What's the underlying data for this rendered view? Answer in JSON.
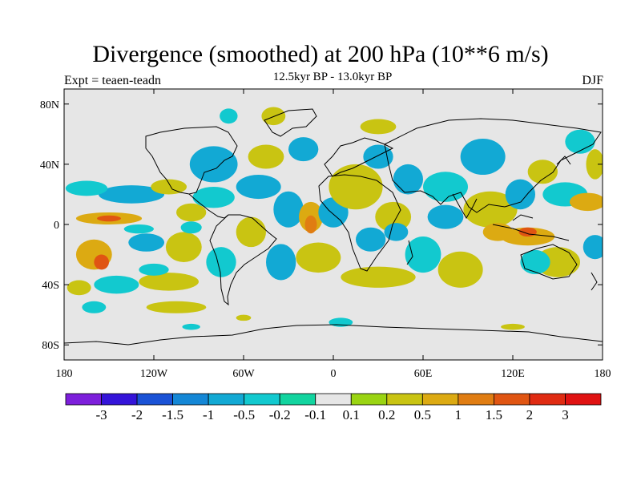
{
  "title": "Divergence (smoothed) at 200 hPa (10**6 m/s)",
  "left_label": "Expt = teaen-teadn",
  "center_label": "12.5kyr BP - 13.0kyr BP",
  "right_label": "DJF",
  "chart_data": {
    "type": "heatmap",
    "title": "Divergence (smoothed) at 200 hPa (10**6 m/s)",
    "subtitle": "12.5kyr BP - 13.0kyr BP",
    "season": "DJF",
    "experiment": "teaen-teadn",
    "xlim": [
      -180,
      180
    ],
    "ylim": [
      -90,
      90
    ],
    "x_ticks": [
      {
        "value": -180,
        "label": "180"
      },
      {
        "value": -120,
        "label": "120W"
      },
      {
        "value": -60,
        "label": "60W"
      },
      {
        "value": 0,
        "label": "0"
      },
      {
        "value": 60,
        "label": "60E"
      },
      {
        "value": 120,
        "label": "120E"
      },
      {
        "value": 180,
        "label": "180"
      }
    ],
    "y_ticks": [
      {
        "value": 80,
        "label": "80N"
      },
      {
        "value": 40,
        "label": "40N"
      },
      {
        "value": 0,
        "label": "0"
      },
      {
        "value": -40,
        "label": "40S"
      },
      {
        "value": -80,
        "label": "80S"
      }
    ],
    "colorbar": {
      "labels": [
        "-3",
        "-2",
        "-1.5",
        "-1",
        "-0.5",
        "-0.2",
        "-0.1",
        "0.1",
        "0.2",
        "0.5",
        "1",
        "1.5",
        "2",
        "3"
      ],
      "colors": [
        "#7d1fdb",
        "#3414d9",
        "#1a52d6",
        "#1487d6",
        "#12a9d4",
        "#12c9cf",
        "#12d49f",
        "#e6e6e6",
        "#9ad412",
        "#c9c412",
        "#dcaa12",
        "#e07d12",
        "#e05512",
        "#e02b12",
        "#e01212"
      ]
    },
    "blobs": [
      {
        "lon": -150,
        "lat": 4,
        "rlon": 22,
        "rlat": 4,
        "cls": 10
      },
      {
        "lon": -150,
        "lat": 4,
        "rlon": 8,
        "rlat": 2,
        "cls": 12
      },
      {
        "lon": -135,
        "lat": 20,
        "rlon": 22,
        "rlat": 6,
        "cls": 4
      },
      {
        "lon": -165,
        "lat": 24,
        "rlon": 14,
        "rlat": 5,
        "cls": 5
      },
      {
        "lon": -110,
        "lat": 25,
        "rlon": 12,
        "rlat": 5,
        "cls": 9
      },
      {
        "lon": -130,
        "lat": -3,
        "rlon": 10,
        "rlat": 3,
        "cls": 5
      },
      {
        "lon": -125,
        "lat": -12,
        "rlon": 12,
        "rlat": 6,
        "cls": 4
      },
      {
        "lon": -160,
        "lat": -20,
        "rlon": 12,
        "rlat": 10,
        "cls": 10
      },
      {
        "lon": -155,
        "lat": -25,
        "rlon": 5,
        "rlat": 5,
        "cls": 12
      },
      {
        "lon": -170,
        "lat": -42,
        "rlon": 8,
        "rlat": 5,
        "cls": 9
      },
      {
        "lon": -145,
        "lat": -40,
        "rlon": 15,
        "rlat": 6,
        "cls": 5
      },
      {
        "lon": -110,
        "lat": -38,
        "rlon": 20,
        "rlat": 6,
        "cls": 9
      },
      {
        "lon": -120,
        "lat": -30,
        "rlon": 10,
        "rlat": 4,
        "cls": 5
      },
      {
        "lon": -100,
        "lat": -15,
        "rlon": 12,
        "rlat": 10,
        "cls": 9
      },
      {
        "lon": -95,
        "lat": 8,
        "rlon": 10,
        "rlat": 6,
        "cls": 9
      },
      {
        "lon": -95,
        "lat": -2,
        "rlon": 7,
        "rlat": 4,
        "cls": 5
      },
      {
        "lon": -80,
        "lat": 40,
        "rlon": 16,
        "rlat": 12,
        "cls": 4
      },
      {
        "lon": -80,
        "lat": 18,
        "rlon": 14,
        "rlat": 7,
        "cls": 5
      },
      {
        "lon": -50,
        "lat": 25,
        "rlon": 15,
        "rlat": 8,
        "cls": 4
      },
      {
        "lon": -45,
        "lat": 45,
        "rlon": 12,
        "rlat": 8,
        "cls": 9
      },
      {
        "lon": -20,
        "lat": 50,
        "rlon": 10,
        "rlat": 8,
        "cls": 4
      },
      {
        "lon": -30,
        "lat": 10,
        "rlon": 10,
        "rlat": 12,
        "cls": 4
      },
      {
        "lon": -35,
        "lat": -25,
        "rlon": 10,
        "rlat": 12,
        "cls": 4
      },
      {
        "lon": -55,
        "lat": -5,
        "rlon": 10,
        "rlat": 10,
        "cls": 9
      },
      {
        "lon": -75,
        "lat": -25,
        "rlon": 10,
        "rlat": 10,
        "cls": 5
      },
      {
        "lon": -15,
        "lat": 5,
        "rlon": 8,
        "rlat": 10,
        "cls": 10
      },
      {
        "lon": -15,
        "lat": 0,
        "rlon": 4,
        "rlat": 6,
        "cls": 11
      },
      {
        "lon": 0,
        "lat": 8,
        "rlon": 10,
        "rlat": 10,
        "cls": 4
      },
      {
        "lon": -10,
        "lat": -22,
        "rlon": 15,
        "rlat": 10,
        "cls": 9
      },
      {
        "lon": 15,
        "lat": 25,
        "rlon": 18,
        "rlat": 15,
        "cls": 9
      },
      {
        "lon": 30,
        "lat": 45,
        "rlon": 10,
        "rlat": 8,
        "cls": 4
      },
      {
        "lon": 30,
        "lat": 65,
        "rlon": 12,
        "rlat": 5,
        "cls": 9
      },
      {
        "lon": 50,
        "lat": 30,
        "rlon": 10,
        "rlat": 10,
        "cls": 4
      },
      {
        "lon": 40,
        "lat": 5,
        "rlon": 12,
        "rlat": 10,
        "cls": 9
      },
      {
        "lon": 42,
        "lat": -5,
        "rlon": 8,
        "rlat": 6,
        "cls": 4
      },
      {
        "lon": 25,
        "lat": -10,
        "rlon": 10,
        "rlat": 8,
        "cls": 4
      },
      {
        "lon": 30,
        "lat": -35,
        "rlon": 25,
        "rlat": 7,
        "cls": 9
      },
      {
        "lon": 60,
        "lat": -20,
        "rlon": 12,
        "rlat": 12,
        "cls": 5
      },
      {
        "lon": 75,
        "lat": 5,
        "rlon": 12,
        "rlat": 8,
        "cls": 4
      },
      {
        "lon": 75,
        "lat": 25,
        "rlon": 15,
        "rlat": 10,
        "cls": 5
      },
      {
        "lon": 85,
        "lat": -30,
        "rlon": 15,
        "rlat": 12,
        "cls": 9
      },
      {
        "lon": 100,
        "lat": 45,
        "rlon": 15,
        "rlat": 12,
        "cls": 4
      },
      {
        "lon": 105,
        "lat": 10,
        "rlon": 18,
        "rlat": 12,
        "cls": 9
      },
      {
        "lon": 110,
        "lat": -5,
        "rlon": 10,
        "rlat": 6,
        "cls": 10
      },
      {
        "lon": 130,
        "lat": -8,
        "rlon": 18,
        "rlat": 6,
        "cls": 10
      },
      {
        "lon": 130,
        "lat": -5,
        "rlon": 6,
        "rlat": 3,
        "cls": 12
      },
      {
        "lon": 125,
        "lat": 20,
        "rlon": 10,
        "rlat": 10,
        "cls": 4
      },
      {
        "lon": 140,
        "lat": 35,
        "rlon": 10,
        "rlat": 8,
        "cls": 9
      },
      {
        "lon": 155,
        "lat": 20,
        "rlon": 15,
        "rlat": 8,
        "cls": 5
      },
      {
        "lon": 170,
        "lat": 15,
        "rlon": 12,
        "rlat": 6,
        "cls": 10
      },
      {
        "lon": 150,
        "lat": -25,
        "rlon": 15,
        "rlat": 10,
        "cls": 9
      },
      {
        "lon": 135,
        "lat": -25,
        "rlon": 10,
        "rlat": 8,
        "cls": 5
      },
      {
        "lon": 175,
        "lat": -15,
        "rlon": 8,
        "rlat": 8,
        "cls": 4
      },
      {
        "lon": 165,
        "lat": 55,
        "rlon": 10,
        "rlat": 8,
        "cls": 5
      },
      {
        "lon": 175,
        "lat": 40,
        "rlon": 6,
        "rlat": 10,
        "cls": 9
      },
      {
        "lon": -105,
        "lat": -55,
        "rlon": 20,
        "rlat": 4,
        "cls": 9
      },
      {
        "lon": -160,
        "lat": -55,
        "rlon": 8,
        "rlat": 4,
        "cls": 5
      },
      {
        "lon": -60,
        "lat": -62,
        "rlon": 5,
        "rlat": 2,
        "cls": 9
      },
      {
        "lon": -95,
        "lat": -68,
        "rlon": 6,
        "rlat": 2,
        "cls": 5
      },
      {
        "lon": 5,
        "lat": -65,
        "rlon": 8,
        "rlat": 3,
        "cls": 5
      },
      {
        "lon": 120,
        "lat": -68,
        "rlon": 8,
        "rlat": 2,
        "cls": 9
      },
      {
        "lon": -40,
        "lat": 72,
        "rlon": 8,
        "rlat": 6,
        "cls": 9
      },
      {
        "lon": -70,
        "lat": 72,
        "rlon": 6,
        "rlat": 5,
        "cls": 5
      }
    ]
  }
}
